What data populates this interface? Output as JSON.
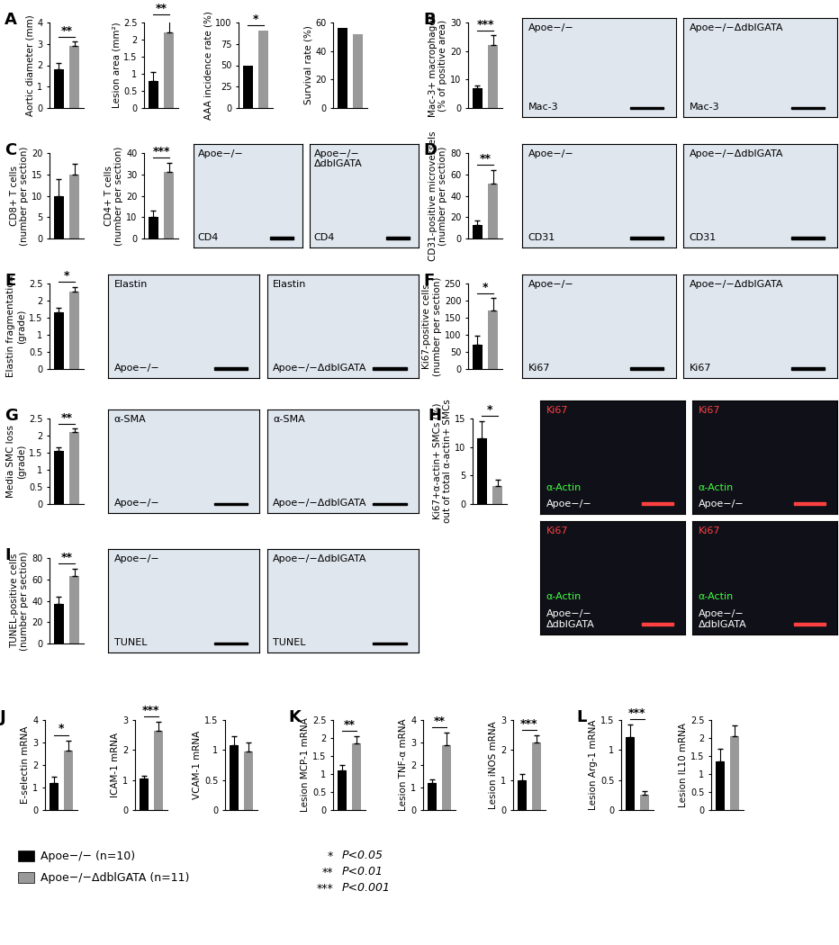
{
  "chart_data": [
    {
      "type": "bar",
      "panel": "A",
      "y_label": "Aortic diameter (mm)",
      "categories": [
        null,
        null
      ],
      "values": [
        1.8,
        2.9
      ],
      "errors": [
        0.3,
        0.2
      ],
      "colors": [
        "#000000",
        "#999999"
      ],
      "ylim": [
        0,
        4
      ],
      "yticks": [
        0,
        1,
        2,
        3,
        4
      ],
      "significance": "**",
      "tick_labels": "y"
    },
    {
      "type": "bar",
      "y_label": "Lesion area (mm²)",
      "categories": [
        null,
        null
      ],
      "values": [
        0.8,
        2.2
      ],
      "errors": [
        0.25,
        0.4
      ],
      "colors": [
        "#000000",
        "#999999"
      ],
      "ylim": [
        0,
        2.5
      ],
      "yticks": [
        0,
        0.5,
        1,
        1.5,
        2,
        2.5
      ],
      "significance": "**",
      "tick_labels": "y"
    },
    {
      "type": "bar",
      "y_label": "AAA incidence rate (%)",
      "categories": [
        null,
        null
      ],
      "values": [
        50,
        91
      ],
      "colors": [
        "#000000",
        "#999999"
      ],
      "ylim": [
        0,
        100
      ],
      "yticks": [
        0,
        25,
        50,
        75,
        100
      ],
      "significance": "*",
      "tick_labels": "y"
    },
    {
      "type": "bar",
      "y_label": "Survival rate (%)",
      "categories": [
        null,
        null
      ],
      "values": [
        56,
        52
      ],
      "colors": [
        "#000000",
        "#999999"
      ],
      "ylim": [
        0,
        60
      ],
      "yticks": [
        0,
        20,
        40,
        60
      ],
      "tick_labels": "y"
    },
    {
      "type": "bar",
      "panel": "B",
      "y_label": "Mac-3+ macrophages\n(% of positive area)",
      "categories": [
        null,
        null
      ],
      "values": [
        7,
        22
      ],
      "errors": [
        1,
        3.5
      ],
      "colors": [
        "#000000",
        "#999999"
      ],
      "ylim": [
        0,
        30
      ],
      "yticks": [
        0,
        10,
        20,
        30
      ],
      "significance": "***",
      "tick_labels": "y"
    },
    {
      "type": "bar",
      "panel": "C",
      "y_label": "CD8+ T cells\n(number per section)",
      "categories": [
        null,
        null
      ],
      "values": [
        10,
        15
      ],
      "errors": [
        4,
        2.5
      ],
      "colors": [
        "#000000",
        "#999999"
      ],
      "ylim": [
        0,
        20
      ],
      "yticks": [
        0,
        5,
        10,
        15,
        20
      ],
      "tick_labels": "y"
    },
    {
      "type": "bar",
      "y_label": "CD4+ T cells\n(number per section)",
      "categories": [
        null,
        null
      ],
      "values": [
        10,
        31
      ],
      "errors": [
        3,
        4.5
      ],
      "colors": [
        "#000000",
        "#999999"
      ],
      "ylim": [
        0,
        40
      ],
      "yticks": [
        0,
        10,
        20,
        30,
        40
      ],
      "significance": "***",
      "tick_labels": "y"
    },
    {
      "type": "bar",
      "panel": "D",
      "y_label": "CD31-positive microvessels\n(number per section)",
      "categories": [
        null,
        null
      ],
      "values": [
        13,
        51
      ],
      "errors": [
        4,
        13
      ],
      "colors": [
        "#000000",
        "#999999"
      ],
      "ylim": [
        0,
        80
      ],
      "yticks": [
        0,
        20,
        40,
        60,
        80
      ],
      "significance": "**",
      "tick_labels": "y"
    },
    {
      "type": "bar",
      "panel": "E",
      "y_label": "Elastin fragmentation\n(grade)",
      "categories": [
        null,
        null
      ],
      "values": [
        1.65,
        2.25
      ],
      "errors": [
        0.15,
        0.15
      ],
      "colors": [
        "#000000",
        "#999999"
      ],
      "ylim": [
        0,
        2.5
      ],
      "yticks": [
        0,
        0.5,
        1,
        1.5,
        2,
        2.5
      ],
      "significance": "*",
      "tick_labels": "y"
    },
    {
      "type": "bar",
      "panel": "F",
      "y_label": "Ki67-positive cells\n(number per section)",
      "categories": [
        null,
        null
      ],
      "values": [
        72,
        172
      ],
      "errors": [
        25,
        35
      ],
      "colors": [
        "#000000",
        "#999999"
      ],
      "ylim": [
        0,
        250
      ],
      "yticks": [
        0,
        50,
        100,
        150,
        200,
        250
      ],
      "significance": "*",
      "tick_labels": "y"
    },
    {
      "type": "bar",
      "panel": "G",
      "y_label": "Media SMC loss\n(grade)",
      "categories": [
        null,
        null
      ],
      "values": [
        1.55,
        2.1
      ],
      "errors": [
        0.1,
        0.1
      ],
      "colors": [
        "#000000",
        "#999999"
      ],
      "ylim": [
        0,
        2.5
      ],
      "yticks": [
        0,
        0.5,
        1,
        1.5,
        2,
        2.5
      ],
      "significance": "**",
      "tick_labels": "y"
    },
    {
      "type": "bar",
      "panel": "H",
      "y_label": "Ki67+α-actin+ SMCs (%)\nout of total α-actin+ SMCs",
      "categories": [
        null,
        null
      ],
      "values": [
        11.5,
        3.2
      ],
      "errors": [
        3,
        1
      ],
      "colors": [
        "#000000",
        "#999999"
      ],
      "ylim": [
        0,
        15
      ],
      "yticks": [
        0,
        5,
        10,
        15
      ],
      "significance": "*",
      "tick_labels": "y"
    },
    {
      "type": "bar",
      "panel": "I",
      "y_label": "TUNEL-positive cells\n(number per section)",
      "categories": [
        null,
        null
      ],
      "values": [
        37,
        63
      ],
      "errors": [
        7,
        7
      ],
      "colors": [
        "#000000",
        "#999999"
      ],
      "ylim": [
        0,
        80
      ],
      "yticks": [
        0,
        20,
        40,
        60,
        80
      ],
      "significance": "**",
      "tick_labels": "y"
    },
    {
      "type": "bar",
      "panel": "J",
      "y_label": "E-selectin mRNA",
      "categories": [
        null,
        null
      ],
      "values": [
        1.2,
        2.65
      ],
      "errors": [
        0.3,
        0.45
      ],
      "colors": [
        "#000000",
        "#999999"
      ],
      "ylim": [
        0,
        4
      ],
      "yticks": [
        0,
        1,
        2,
        3,
        4
      ],
      "significance": "*",
      "tick_labels": "y"
    },
    {
      "type": "bar",
      "y_label": "ICAM-1 mRNA",
      "categories": [
        null,
        null
      ],
      "values": [
        1.05,
        2.65
      ],
      "errors": [
        0.1,
        0.3
      ],
      "colors": [
        "#000000",
        "#999999"
      ],
      "ylim": [
        0,
        3
      ],
      "yticks": [
        0,
        1,
        2,
        3
      ],
      "significance": "***",
      "tick_labels": "y"
    },
    {
      "type": "bar",
      "y_label": "VCAM-1 mRNA",
      "categories": [
        null,
        null
      ],
      "values": [
        1.08,
        0.97
      ],
      "errors": [
        0.15,
        0.15
      ],
      "colors": [
        "#000000",
        "#999999"
      ],
      "ylim": [
        0,
        1.5
      ],
      "yticks": [
        0,
        0.5,
        1,
        1.5
      ],
      "tick_labels": "y"
    },
    {
      "type": "bar",
      "panel": "K",
      "y_label": "Lesion MCP-1 mRNA",
      "categories": [
        null,
        null
      ],
      "values": [
        1.1,
        1.85
      ],
      "errors": [
        0.15,
        0.2
      ],
      "colors": [
        "#000000",
        "#999999"
      ],
      "ylim": [
        0,
        2.5
      ],
      "yticks": [
        0,
        0.5,
        1,
        1.5,
        2,
        2.5
      ],
      "significance": "**",
      "tick_labels": "y"
    },
    {
      "type": "bar",
      "y_label": "Lesion TNF-α mRNA",
      "categories": [
        null,
        null
      ],
      "values": [
        1.2,
        2.9
      ],
      "errors": [
        0.15,
        0.55
      ],
      "colors": [
        "#000000",
        "#999999"
      ],
      "ylim": [
        0,
        4
      ],
      "yticks": [
        0,
        1,
        2,
        3,
        4
      ],
      "significance": "**",
      "tick_labels": "y"
    },
    {
      "type": "bar",
      "y_label": "Lesion iNOS mRNA",
      "categories": [
        null,
        null
      ],
      "values": [
        1.0,
        2.25
      ],
      "errors": [
        0.2,
        0.25
      ],
      "colors": [
        "#000000",
        "#999999"
      ],
      "ylim": [
        0,
        3
      ],
      "yticks": [
        0,
        1,
        2,
        3
      ],
      "significance": "***",
      "tick_labels": "y"
    },
    {
      "type": "bar",
      "panel": "L",
      "y_label": "Lesion Arg-1 mRNA",
      "categories": [
        null,
        null
      ],
      "values": [
        1.22,
        0.25
      ],
      "errors": [
        0.2,
        0.06
      ],
      "colors": [
        "#000000",
        "#999999"
      ],
      "ylim": [
        0,
        1.5
      ],
      "yticks": [
        0,
        0.5,
        1,
        1.5
      ],
      "significance": "***",
      "tick_labels": "y"
    },
    {
      "type": "bar",
      "y_label": "Lesion IL10 mRNA",
      "categories": [
        null,
        null
      ],
      "values": [
        1.35,
        2.05
      ],
      "errors": [
        0.35,
        0.3
      ],
      "colors": [
        "#000000",
        "#999999"
      ],
      "ylim": [
        0,
        2.5
      ],
      "yticks": [
        0,
        0.5,
        1,
        1.5,
        2,
        2.5
      ],
      "tick_labels": "y"
    }
  ],
  "image_panels": [
    {
      "images": [
        {
          "labels": [
            "Apoe−/−",
            "Mac-3"
          ]
        },
        {
          "labels": [
            "Apoe−/−ΔdblGATA",
            "Mac-3"
          ]
        }
      ]
    },
    {
      "images": [
        {
          "labels": [
            "Apoe−/−",
            "CD4"
          ]
        },
        {
          "labels": [
            "Apoe−/−\nΔdblGATA",
            "CD4"
          ]
        }
      ]
    },
    {
      "images": [
        {
          "labels": [
            "Apoe−/−",
            "CD31"
          ]
        },
        {
          "labels": [
            "Apoe−/−ΔdblGATA",
            "CD31"
          ]
        }
      ]
    },
    {
      "images": [
        {
          "labels": [
            "Elastin",
            "Apoe−/−"
          ]
        },
        {
          "labels": [
            "Elastin",
            "Apoe−/−ΔdblGATA"
          ]
        }
      ]
    },
    {
      "images": [
        {
          "labels": [
            "Apoe−/−",
            "Ki67"
          ]
        },
        {
          "labels": [
            "Apoe−/−ΔdblGATA",
            "Ki67"
          ]
        }
      ]
    },
    {
      "images": [
        {
          "labels": [
            "α-SMA",
            "Apoe−/−"
          ]
        },
        {
          "labels": [
            "α-SMA",
            "Apoe−/−ΔdblGATA"
          ]
        }
      ]
    },
    {
      "images": [
        {
          "labels": [
            "Ki67",
            "α-Actin",
            "Apoe−/−"
          ]
        },
        {
          "labels": [
            "Ki67",
            "α-Actin",
            "Apoe−/−"
          ]
        },
        {
          "labels": [
            "Ki67",
            "α-Actin",
            "Apoe−/−\nΔdblGATA"
          ]
        },
        {
          "labels": [
            "Ki67",
            "α-Actin",
            "Apoe−/−\nΔdblGATA"
          ]
        }
      ]
    },
    {
      "images": [
        {
          "labels": [
            "Apoe−/−",
            "TUNEL"
          ]
        },
        {
          "labels": [
            "Apoe−/−ΔdblGATA",
            "TUNEL"
          ]
        }
      ]
    }
  ],
  "legend": [
    {
      "name": "Apoe−/− (n=10)",
      "color": "#000000"
    },
    {
      "name": "Apoe−/−ΔdblGATA (n=11)",
      "color": "#999999"
    }
  ],
  "significance_key": [
    {
      "symbol": "*",
      "text": "P<0.05"
    },
    {
      "symbol": "**",
      "text": "P<0.01"
    },
    {
      "symbol": "***",
      "text": "P<0.001"
    }
  ]
}
